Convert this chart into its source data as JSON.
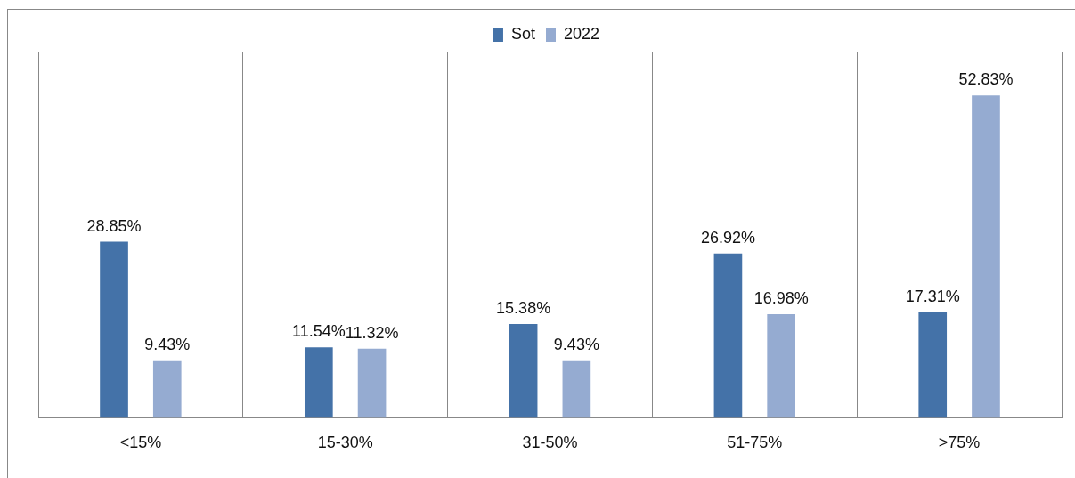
{
  "chart_data": {
    "type": "bar",
    "categories": [
      "<15%",
      "15-30%",
      "31-50%",
      "51-75%",
      ">75%"
    ],
    "series": [
      {
        "name": "Sot",
        "color": "#4472a8",
        "values": [
          28.85,
          11.54,
          15.38,
          26.92,
          17.31
        ],
        "value_labels": [
          "28.85%",
          "11.54%",
          "15.38%",
          "26.92%",
          "17.31%"
        ]
      },
      {
        "name": "2022",
        "color": "#95abd1",
        "values": [
          9.43,
          11.32,
          9.43,
          16.98,
          52.83
        ],
        "value_labels": [
          "9.43%",
          "11.32%",
          "9.43%",
          "16.98%",
          "52.83%"
        ]
      }
    ],
    "ylim": [
      0,
      60
    ],
    "grid": "x",
    "legend": "top",
    "tick_labels": "x"
  }
}
